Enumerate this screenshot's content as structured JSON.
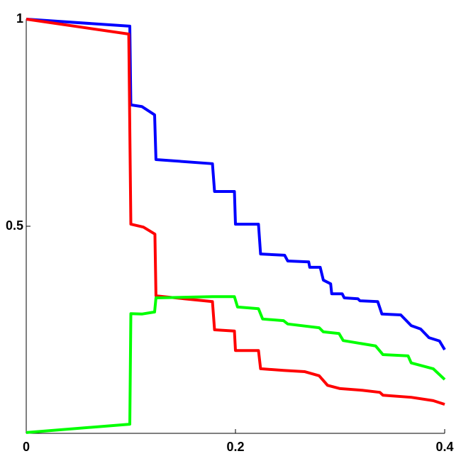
{
  "chart_data": {
    "type": "line",
    "xlim": [
      0,
      0.4
    ],
    "ylim": [
      0,
      1
    ],
    "xticks": [
      0,
      0.2,
      0.4
    ],
    "yticks": [
      0.5,
      1
    ],
    "series": [
      {
        "color": "#0000ff",
        "x": [
          0,
          0.099,
          0.1,
          0.1105,
          0.1227,
          0.124,
          0.178,
          0.18,
          0.199,
          0.2,
          0.222,
          0.224,
          0.247,
          0.25,
          0.27,
          0.271,
          0.281,
          0.284,
          0.291,
          0.292,
          0.302,
          0.304,
          0.317,
          0.319,
          0.336,
          0.34,
          0.358,
          0.368,
          0.377,
          0.385,
          0.395,
          0.4
        ],
        "values": [
          1,
          0.983,
          0.793,
          0.789,
          0.769,
          0.661,
          0.651,
          0.584,
          0.584,
          0.505,
          0.505,
          0.433,
          0.43,
          0.416,
          0.414,
          0.401,
          0.401,
          0.37,
          0.361,
          0.337,
          0.337,
          0.327,
          0.325,
          0.32,
          0.318,
          0.288,
          0.286,
          0.26,
          0.252,
          0.231,
          0.223,
          0.202
        ]
      },
      {
        "color": "#ff0000",
        "x": [
          0,
          0.098,
          0.1,
          0.112,
          0.123,
          0.124,
          0.151,
          0.178,
          0.18,
          0.199,
          0.2,
          0.222,
          0.224,
          0.246,
          0.266,
          0.28,
          0.288,
          0.3,
          0.321,
          0.338,
          0.341,
          0.368,
          0.389,
          0.4
        ],
        "values": [
          1,
          0.964,
          0.505,
          0.498,
          0.481,
          0.332,
          0.325,
          0.318,
          0.25,
          0.247,
          0.2,
          0.2,
          0.156,
          0.152,
          0.149,
          0.139,
          0.116,
          0.108,
          0.104,
          0.099,
          0.092,
          0.087,
          0.079,
          0.07
        ]
      },
      {
        "color": "#00ff00",
        "x": [
          0,
          0.099,
          0.1,
          0.1105,
          0.1227,
          0.124,
          0.178,
          0.199,
          0.202,
          0.222,
          0.226,
          0.246,
          0.25,
          0.28,
          0.284,
          0.299,
          0.303,
          0.334,
          0.341,
          0.365,
          0.368,
          0.389,
          0.4
        ],
        "values": [
          0.002,
          0.022,
          0.289,
          0.288,
          0.293,
          0.327,
          0.33,
          0.33,
          0.305,
          0.301,
          0.276,
          0.272,
          0.264,
          0.255,
          0.245,
          0.241,
          0.224,
          0.211,
          0.19,
          0.187,
          0.17,
          0.156,
          0.13
        ]
      }
    ]
  }
}
